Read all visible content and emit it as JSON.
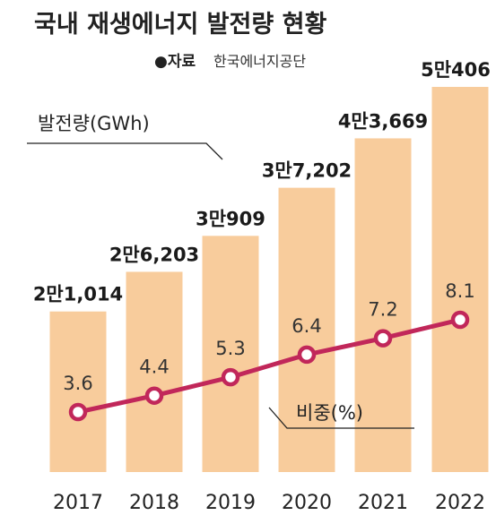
{
  "title": "국내 재생에너지 발전량 현황",
  "source": {
    "label": "●자료",
    "text": "한국에너지공단"
  },
  "colors": {
    "bar": "#F8CC9C",
    "line": "#C1275A",
    "marker_fill": "#ffffff",
    "text": "#222222"
  },
  "chart_data": {
    "type": "bar",
    "categories": [
      "2017",
      "2018",
      "2019",
      "2020",
      "2021",
      "2022"
    ],
    "series": [
      {
        "name": "발전량(GWh)",
        "type": "bar",
        "values": [
          21014,
          26203,
          30909,
          37202,
          43669,
          50406
        ],
        "labels": [
          "2만1,014",
          "2만6,203",
          "3만909",
          "3만7,202",
          "4만3,669",
          "5만406"
        ]
      },
      {
        "name": "비중(%)",
        "type": "line",
        "values": [
          3.6,
          4.4,
          5.3,
          6.4,
          7.2,
          8.1
        ],
        "labels": [
          "3.6",
          "4.4",
          "5.3",
          "6.4",
          "7.2",
          "8.1"
        ]
      }
    ],
    "legend": [
      "발전량(GWh)",
      "비중(%)"
    ],
    "grid": false
  }
}
